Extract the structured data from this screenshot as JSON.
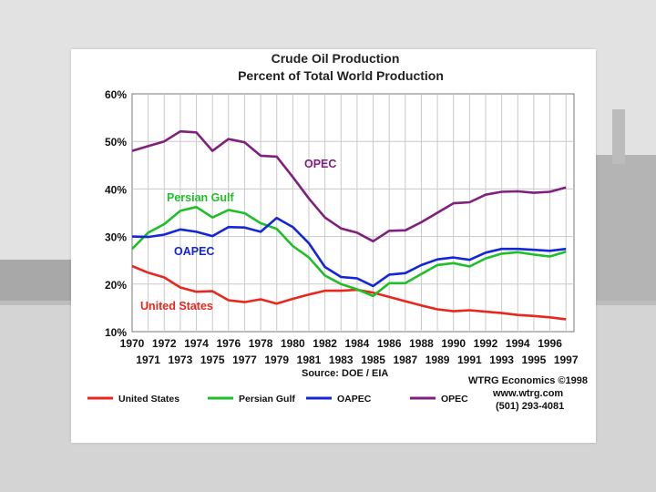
{
  "chart_data": {
    "type": "line",
    "title": "Crude Oil Production",
    "subtitle": "Percent of Total World Production",
    "ylim": [
      10,
      60
    ],
    "y_ticks": [
      "10%",
      "20%",
      "30%",
      "40%",
      "50%",
      "60%"
    ],
    "y_tick_values": [
      10,
      20,
      30,
      40,
      50,
      60
    ],
    "x_ticks_top": [
      "1970",
      "1972",
      "1974",
      "1976",
      "1978",
      "1980",
      "1982",
      "1984",
      "1986",
      "1988",
      "1990",
      "1992",
      "1994",
      "1996"
    ],
    "x_ticks_bottom": [
      "1971",
      "1973",
      "1975",
      "1977",
      "1979",
      "1981",
      "1983",
      "1985",
      "1987",
      "1989",
      "1991",
      "1993",
      "1995",
      "1997"
    ],
    "xlim": [
      1970,
      1997.5
    ],
    "grid": true,
    "source": "Source: DOE / EIA",
    "credit": {
      "line1": "WTRG Economics ©1998",
      "line2": "www.wtrg.com",
      "line3": "(501) 293-4081"
    },
    "series": [
      {
        "name": "United States",
        "label": "United States",
        "color": "#e8281e",
        "x": [
          1970,
          1971,
          1972,
          1973,
          1974,
          1975,
          1976,
          1977,
          1978,
          1979,
          1980,
          1981,
          1982,
          1983,
          1984,
          1985,
          1986,
          1987,
          1988,
          1989,
          1990,
          1991,
          1992,
          1993,
          1994,
          1995,
          1996,
          1997
        ],
        "values": [
          23.8,
          22.4,
          21.4,
          19.3,
          18.4,
          18.5,
          16.6,
          16.2,
          16.8,
          15.9,
          16.9,
          17.8,
          18.6,
          18.6,
          18.8,
          18.2,
          17.3,
          16.4,
          15.5,
          14.7,
          14.3,
          14.5,
          14.2,
          13.9,
          13.5,
          13.3,
          13.0,
          12.6
        ]
      },
      {
        "name": "Persian Gulf",
        "label": "Persian Gulf",
        "color": "#1fbf2a",
        "x": [
          1970,
          1971,
          1972,
          1973,
          1974,
          1975,
          1976,
          1977,
          1978,
          1979,
          1980,
          1981,
          1982,
          1983,
          1984,
          1985,
          1986,
          1987,
          1988,
          1989,
          1990,
          1991,
          1992,
          1993,
          1994,
          1995,
          1996,
          1997
        ],
        "values": [
          27.4,
          30.8,
          32.6,
          35.4,
          36.2,
          34.0,
          35.6,
          34.9,
          32.8,
          31.6,
          28.0,
          25.6,
          21.8,
          20.0,
          18.9,
          17.5,
          20.2,
          20.2,
          22.1,
          24.0,
          24.4,
          23.7,
          25.4,
          26.4,
          26.7,
          26.2,
          25.8,
          26.8
        ]
      },
      {
        "name": "OAPEC",
        "label": "OAPEC",
        "color": "#1426d6",
        "x": [
          1970,
          1971,
          1972,
          1973,
          1974,
          1975,
          1976,
          1977,
          1978,
          1979,
          1980,
          1981,
          1982,
          1983,
          1984,
          1985,
          1986,
          1987,
          1988,
          1989,
          1990,
          1991,
          1992,
          1993,
          1994,
          1995,
          1996,
          1997
        ],
        "values": [
          30.0,
          29.9,
          30.4,
          31.5,
          31.0,
          30.1,
          32.0,
          31.9,
          31.0,
          33.9,
          32.0,
          28.6,
          23.6,
          21.5,
          21.2,
          19.6,
          22.0,
          22.3,
          24.0,
          25.2,
          25.6,
          25.1,
          26.6,
          27.4,
          27.4,
          27.2,
          27.0,
          27.4
        ]
      },
      {
        "name": "OPEC",
        "label": "OPEC",
        "color": "#801f7d",
        "x": [
          1970,
          1971,
          1972,
          1973,
          1974,
          1975,
          1976,
          1977,
          1978,
          1979,
          1980,
          1981,
          1982,
          1983,
          1984,
          1985,
          1986,
          1987,
          1988,
          1989,
          1990,
          1991,
          1992,
          1993,
          1994,
          1995,
          1996,
          1997
        ],
        "values": [
          48.0,
          49.0,
          50.0,
          52.1,
          51.9,
          48.0,
          50.5,
          49.8,
          47.0,
          46.8,
          42.5,
          38.0,
          34.0,
          31.7,
          30.8,
          29.0,
          31.2,
          31.3,
          33.0,
          35.0,
          37.0,
          37.2,
          38.8,
          39.4,
          39.5,
          39.2,
          39.4,
          40.3
        ]
      }
    ],
    "legend": [
      {
        "label": "United States",
        "color": "#e8281e"
      },
      {
        "label": "Persian Gulf",
        "color": "#1fbf2a"
      },
      {
        "label": "OAPEC",
        "color": "#1426d6"
      },
      {
        "label": "OPEC",
        "color": "#801f7d"
      }
    ]
  }
}
